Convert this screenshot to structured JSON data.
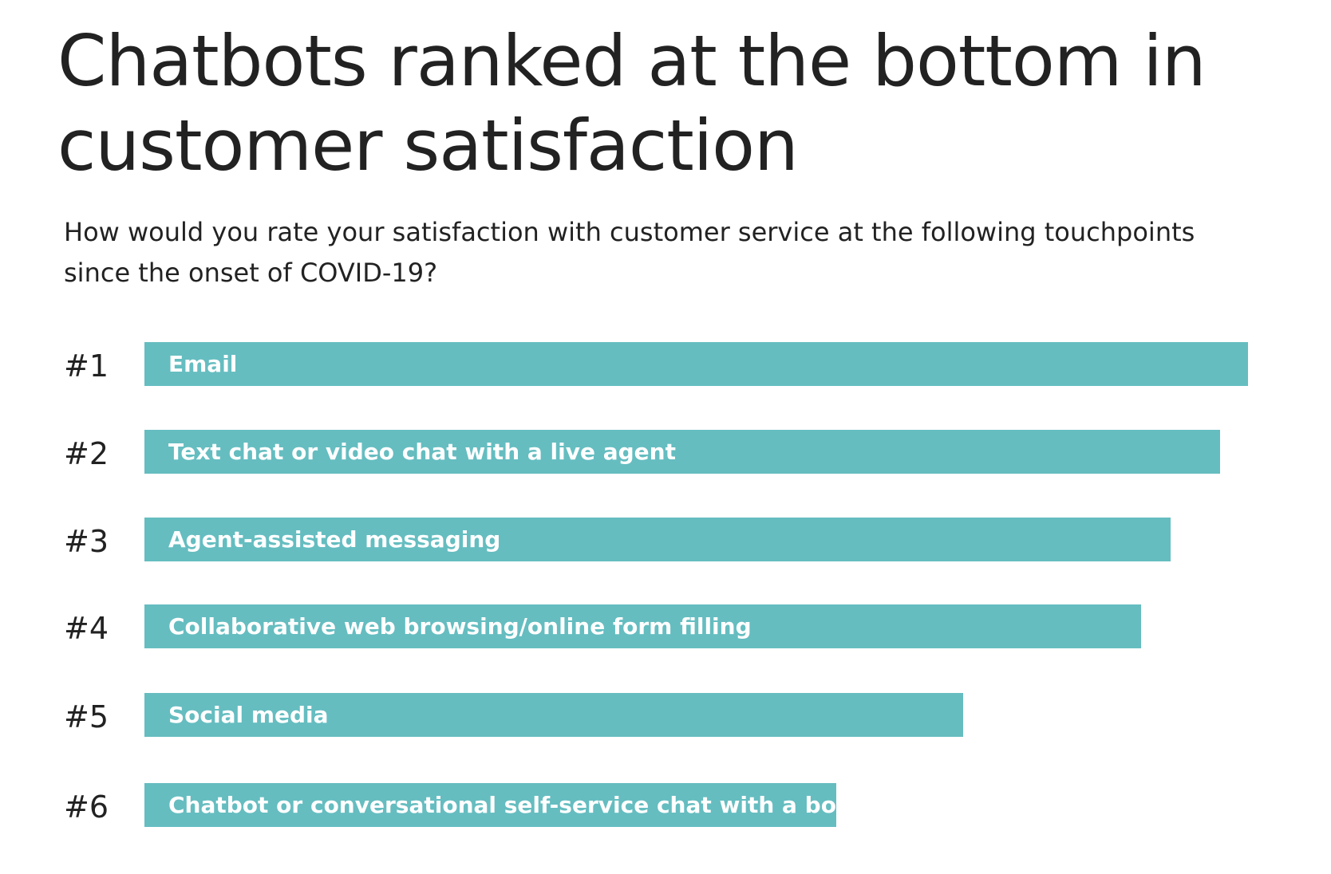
{
  "chart_data": {
    "type": "bar",
    "orientation": "horizontal",
    "title": "Chatbots ranked at the bottom in customer satisfaction",
    "subtitle": "How would you rate your satisfaction with customer service at the following touchpoints since the onset of COVID-19?",
    "ranks": [
      "#1",
      "#2",
      "#3",
      "#4",
      "#5",
      "#6"
    ],
    "categories": [
      "Email",
      "Text chat or video chat with a live agent",
      "Agent-assisted messaging",
      "Collaborative web browsing/online form filling",
      "Social media",
      "Chatbot or conversational self-service chat with a bot"
    ],
    "values_relative_to_top": [
      1.0,
      0.975,
      0.93,
      0.903,
      0.742,
      0.627
    ],
    "axis_shown": false,
    "grid": false,
    "bar_color": "#65bdc0",
    "label_color": "#ffffff"
  }
}
